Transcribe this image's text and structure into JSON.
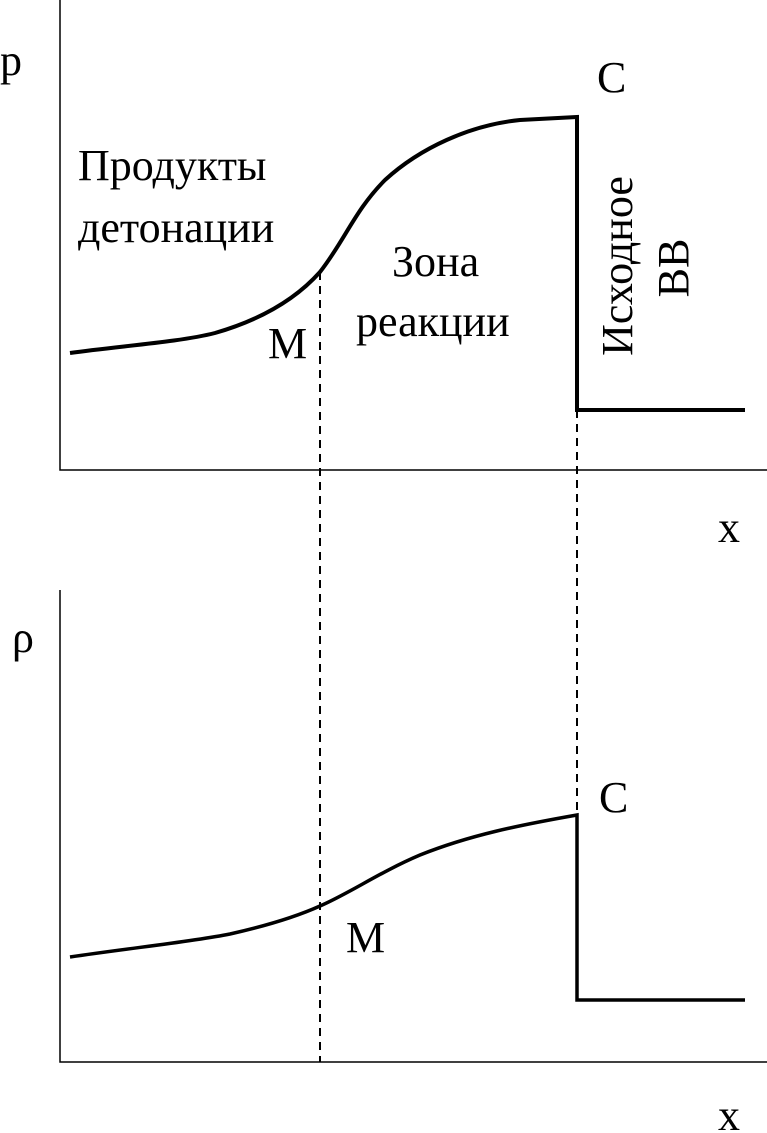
{
  "top_panel": {
    "y_label": "p",
    "x_label": "x",
    "point_c": "C",
    "point_m": "M",
    "products": [
      "Продукты",
      "детонации"
    ],
    "reaction_zone": [
      "Зона",
      "реакции"
    ],
    "initial_explosive": [
      "Исходное",
      "ВВ"
    ]
  },
  "bottom_panel": {
    "y_label": "ρ",
    "x_label": "x",
    "point_c": "C",
    "point_m": "M"
  }
}
